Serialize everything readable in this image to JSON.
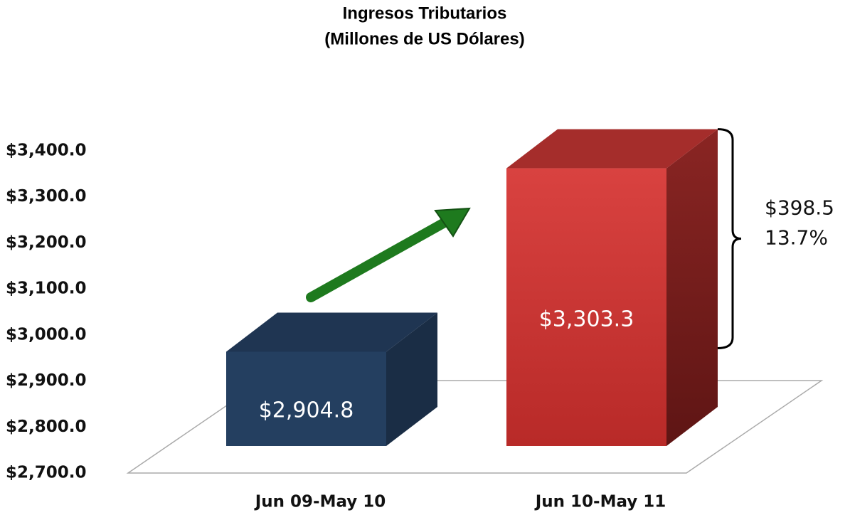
{
  "chart_data": {
    "type": "bar3d",
    "title": "Ingresos Tributarios",
    "subtitle": "(Millones de US Dólares)",
    "categories": [
      "Jun 09-May 10",
      "Jun 10-May 11"
    ],
    "values": [
      2904.8,
      3303.3
    ],
    "value_labels": [
      "$2,904.8",
      "$3,303.3"
    ],
    "colors": [
      "#243f60",
      "#c0312f"
    ],
    "ylim": [
      2700,
      3400
    ],
    "yticks": [
      {
        "value": 2700,
        "label": "$2,700.0"
      },
      {
        "value": 2800,
        "label": "$2,800.0"
      },
      {
        "value": 2900,
        "label": "$2,900.0"
      },
      {
        "value": 3000,
        "label": "$3,000.0"
      },
      {
        "value": 3100,
        "label": "$3,100.0"
      },
      {
        "value": 3200,
        "label": "$3,200.0"
      },
      {
        "value": 3300,
        "label": "$3,300.0"
      },
      {
        "value": 3400,
        "label": "$3,400.0"
      }
    ],
    "annotations": [
      "$398.5",
      "13.7%"
    ]
  }
}
